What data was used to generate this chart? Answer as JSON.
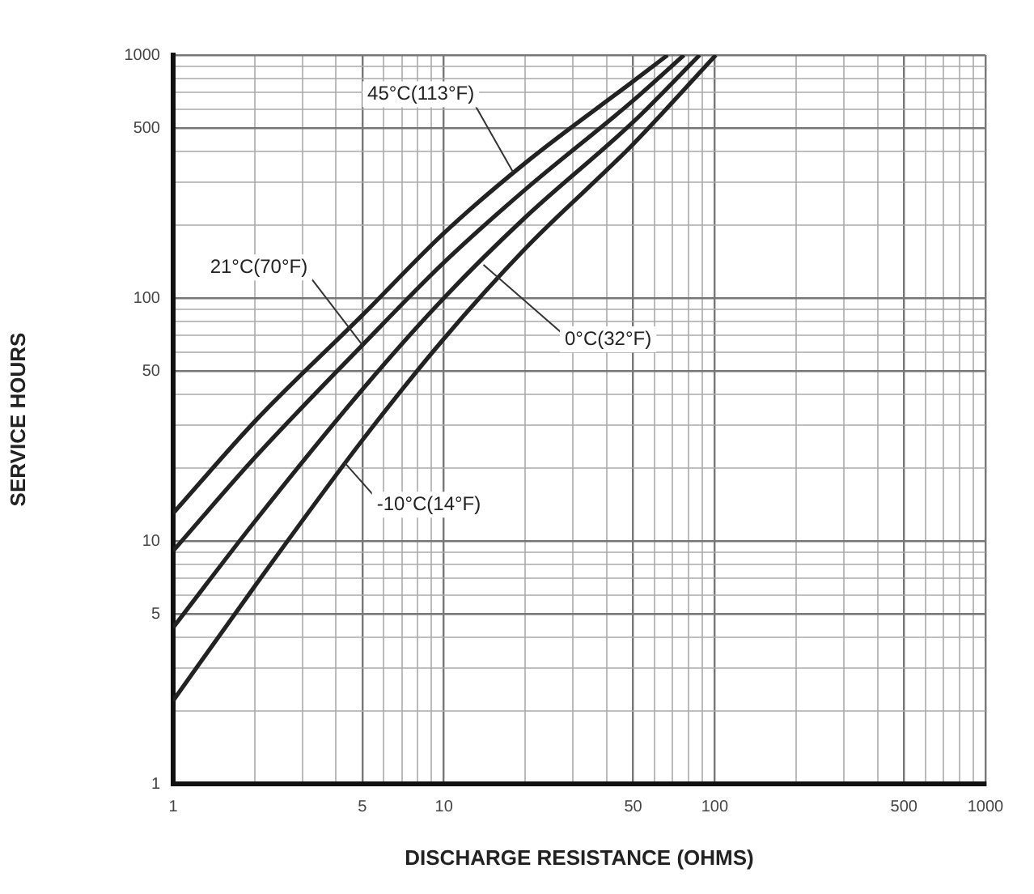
{
  "chart_data": {
    "type": "line",
    "xlabel": "DISCHARGE RESISTANCE (OHMS)",
    "ylabel": "SERVICE HOURS",
    "log": "xy",
    "xlim": [
      1,
      1000
    ],
    "ylim": [
      1,
      1000
    ],
    "xticks": [
      1,
      {
        "value": 2,
        "label": null
      },
      {
        "value": 3,
        "label": null
      },
      {
        "value": 4,
        "label": null
      },
      5,
      {
        "value": 6,
        "label": null
      },
      {
        "value": 7,
        "label": null
      },
      {
        "value": 8,
        "label": null
      },
      {
        "value": 9,
        "label": null
      },
      10,
      {
        "value": 20,
        "label": null
      },
      {
        "value": 30,
        "label": null
      },
      {
        "value": 40,
        "label": null
      },
      50,
      {
        "value": 60,
        "label": null
      },
      {
        "value": 70,
        "label": null
      },
      {
        "value": 80,
        "label": null
      },
      {
        "value": 90,
        "label": null
      },
      100,
      {
        "value": 200,
        "label": null
      },
      {
        "value": 300,
        "label": null
      },
      {
        "value": 400,
        "label": null
      },
      500,
      {
        "value": 600,
        "label": null
      },
      {
        "value": 700,
        "label": null
      },
      {
        "value": 800,
        "label": null
      },
      {
        "value": 900,
        "label": null
      },
      1000
    ],
    "yticks": [
      1,
      {
        "value": 2,
        "label": null
      },
      {
        "value": 3,
        "label": null
      },
      {
        "value": 4,
        "label": null
      },
      5,
      {
        "value": 6,
        "label": null
      },
      {
        "value": 7,
        "label": null
      },
      {
        "value": 8,
        "label": null
      },
      {
        "value": 9,
        "label": null
      },
      10,
      {
        "value": 20,
        "label": null
      },
      {
        "value": 30,
        "label": null
      },
      {
        "value": 40,
        "label": null
      },
      50,
      {
        "value": 60,
        "label": null
      },
      {
        "value": 70,
        "label": null
      },
      {
        "value": 80,
        "label": null
      },
      {
        "value": 90,
        "label": null
      },
      100,
      {
        "value": 200,
        "label": null
      },
      {
        "value": 300,
        "label": null
      },
      {
        "value": 400,
        "label": null
      },
      500,
      {
        "value": 600,
        "label": null
      },
      {
        "value": 700,
        "label": null
      },
      {
        "value": 800,
        "label": null
      },
      {
        "value": 900,
        "label": null
      },
      1000
    ],
    "grid": true,
    "marker": "none",
    "line_style": "solid",
    "legend": false,
    "series": [
      {
        "color": "#222222",
        "x": [
          1,
          2,
          5,
          10,
          20,
          50,
          67
        ],
        "values": [
          13,
          31,
          85,
          185,
          360,
          780,
          1000
        ]
      },
      {
        "color": "#222222",
        "x": [
          1,
          2,
          5,
          10,
          20,
          50,
          77
        ],
        "values": [
          9.1,
          22,
          64,
          140,
          280,
          650,
          1000
        ]
      },
      {
        "color": "#222222",
        "x": [
          1,
          2,
          5,
          10,
          20,
          50,
          88
        ],
        "values": [
          4.4,
          12,
          42,
          100,
          215,
          530,
          1000
        ]
      },
      {
        "color": "#222222",
        "x": [
          1,
          2,
          5,
          10,
          20,
          50,
          101
        ],
        "values": [
          2.2,
          6.5,
          26,
          68,
          160,
          430,
          1000
        ]
      }
    ],
    "annotations": [
      {
        "text": "45°C(113°F)",
        "x": 18,
        "y": 330
      },
      {
        "text": "21°C(70°F)",
        "x": 5,
        "y": 64
      },
      {
        "text": "0°C(32°F)",
        "x": 14,
        "y": 137
      },
      {
        "text": "-10°C(14°F)",
        "x": 4.3,
        "y": 21
      }
    ]
  }
}
